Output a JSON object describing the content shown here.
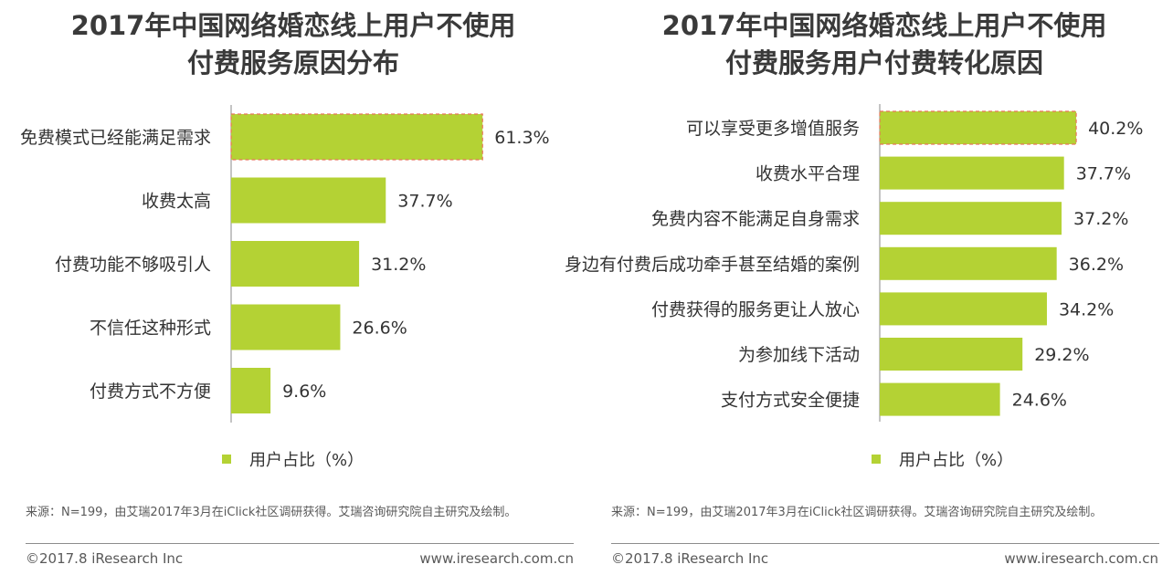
{
  "chart_data": [
    {
      "type": "bar",
      "orientation": "horizontal",
      "title_line1": "2017年中国网络婚恋线上用户不使用",
      "title_line2": "付费服务原因分布",
      "categories": [
        "免费模式已经能满足需求",
        "收费太高",
        "付费功能不够吸引人",
        "不信任这种形式",
        "付费方式不方便"
      ],
      "values": [
        61.3,
        37.7,
        31.2,
        26.6,
        9.6
      ],
      "value_labels": [
        "61.3%",
        "37.7%",
        "31.2%",
        "26.6%",
        "9.6%"
      ],
      "highlight_index": 0,
      "legend": "用户占比（%）",
      "xlim": [
        0,
        100
      ]
    },
    {
      "type": "bar",
      "orientation": "horizontal",
      "title_line1": "2017年中国网络婚恋线上用户不使用",
      "title_line2": "付费服务用户付费转化原因",
      "categories": [
        "可以享受更多增值服务",
        "收费水平合理",
        "免费内容不能满足自身需求",
        "身边有付费后成功牵手甚至结婚的案例",
        "付费获得的服务更让人放心",
        "为参加线下活动",
        "支付方式安全便捷"
      ],
      "values": [
        40.2,
        37.7,
        37.2,
        36.2,
        34.2,
        29.2,
        24.6
      ],
      "value_labels": [
        "40.2%",
        "37.7%",
        "37.2%",
        "36.2%",
        "34.2%",
        "29.2%",
        "24.6%"
      ],
      "highlight_index": 0,
      "legend": "用户占比（%）",
      "xlim": [
        0,
        100
      ]
    }
  ],
  "footer": {
    "source": "来源：N=199，由艾瑞2017年3月在iClick社区调研获得。艾瑞咨询研究院自主研究及绘制。",
    "copyright": "©2017.8 iResearch Inc",
    "website": "www.iresearch.com.cn"
  },
  "colors": {
    "bar": "#b4d234",
    "highlight_border": "#e8735a",
    "axis": "#888888"
  }
}
